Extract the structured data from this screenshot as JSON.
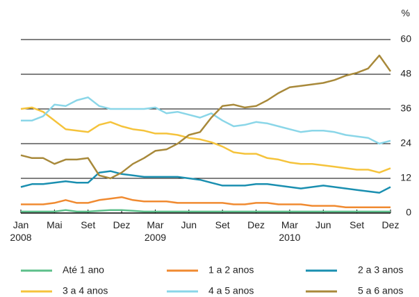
{
  "chart_data": {
    "type": "line",
    "y_label": "%",
    "categories": [
      "Jan 2008",
      null,
      null,
      "Mai",
      null,
      null,
      "Set",
      null,
      null,
      "Dez",
      null,
      null,
      "Mar 2009",
      null,
      null,
      "Jun",
      null,
      null,
      "Set",
      null,
      null,
      "Dez",
      null,
      null,
      "Mar 2010",
      null,
      null,
      "Jun",
      null,
      null,
      "Set",
      null,
      null,
      "Dez"
    ],
    "ylim": [
      0,
      60
    ],
    "yticks": [
      0,
      12,
      24,
      36,
      48,
      60
    ],
    "grid": true,
    "series": [
      {
        "name": "Até 1 ano",
        "color": "#5cbf8a",
        "values": [
          0.5,
          0.5,
          0.5,
          0.5,
          1,
          0.5,
          0.5,
          0.8,
          1,
          1,
          0.8,
          0.5,
          0.5,
          0.5,
          0.5,
          0.5,
          0.5,
          0.5,
          0.5,
          0.5,
          0.5,
          0.5,
          0.5,
          0.5,
          0.5,
          0.5,
          0.5,
          0.5,
          0.5,
          0.5,
          0.5,
          0.5,
          0.5,
          0.5
        ]
      },
      {
        "name": "1 a 2 anos",
        "color": "#f08a30",
        "values": [
          3,
          3,
          3,
          3.5,
          4.5,
          3.5,
          3.5,
          4.5,
          5,
          5.5,
          4.5,
          4,
          4,
          4,
          3.5,
          3.5,
          3.5,
          3.5,
          3.5,
          3,
          3,
          3.5,
          3.5,
          3,
          3,
          3,
          2.5,
          2.5,
          2.5,
          2,
          2,
          2,
          2,
          2
        ]
      },
      {
        "name": "2 a 3 anos",
        "color": "#1a8fb0",
        "values": [
          9,
          10,
          10,
          10.5,
          11,
          10.5,
          10.5,
          14,
          14.5,
          13.5,
          13,
          12.5,
          12.5,
          12.5,
          12.5,
          12,
          11.5,
          10.5,
          9.5,
          9.5,
          9.5,
          10,
          10,
          9.5,
          9,
          8.5,
          9,
          9.5,
          9,
          8.5,
          8,
          7.5,
          7,
          9
        ]
      },
      {
        "name": "3 a 4 anos",
        "color": "#f5c33b",
        "values": [
          36,
          36.5,
          35,
          32,
          29,
          28.5,
          28,
          30.5,
          31.5,
          30,
          29,
          28.5,
          27.5,
          27.5,
          27,
          26,
          25.5,
          24.5,
          23,
          21,
          20.5,
          20.5,
          19,
          18.5,
          17.5,
          17,
          17,
          16.5,
          16,
          15.5,
          15,
          15,
          14,
          15.5
        ]
      },
      {
        "name": "4 a 5 anos",
        "color": "#8ad6e8",
        "values": [
          32,
          32,
          33.5,
          37.5,
          37,
          39,
          40,
          37,
          36,
          36,
          36,
          36,
          36.5,
          34.5,
          35,
          34,
          33,
          34.5,
          32,
          30,
          30.5,
          31.5,
          31,
          30,
          29,
          28,
          28.5,
          28.5,
          28,
          27,
          26.5,
          26,
          24,
          25
        ]
      },
      {
        "name": "5 a 6 anos",
        "color": "#a8893a",
        "values": [
          20,
          19,
          19,
          17,
          18.5,
          18.5,
          19,
          13,
          12,
          14,
          17,
          19,
          21.5,
          22,
          24,
          27,
          28,
          33,
          37,
          37.5,
          36.5,
          37,
          39,
          41.5,
          43.5,
          44,
          44.5,
          45,
          46,
          47.5,
          48.5,
          50,
          54.5,
          49
        ]
      }
    ]
  }
}
